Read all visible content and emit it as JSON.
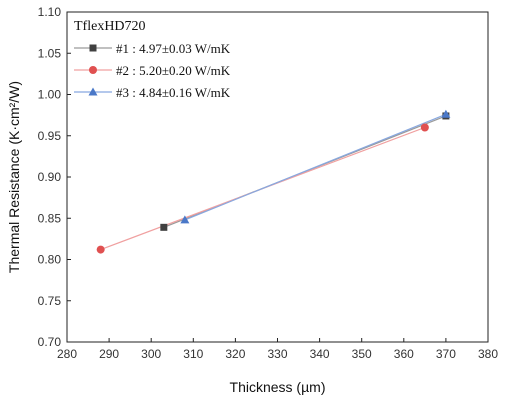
{
  "chart_data": {
    "type": "scatter",
    "title": "TflexHD720",
    "xlabel": "Thickness (µm)",
    "ylabel": "Thermal Resistance (K·cm²/W)",
    "xlim": [
      280,
      380
    ],
    "ylim": [
      0.7,
      1.1
    ],
    "xticks": [
      "280",
      "290",
      "300",
      "310",
      "320",
      "330",
      "340",
      "350",
      "360",
      "370",
      "380"
    ],
    "yticks": [
      "0.70",
      "0.75",
      "0.80",
      "0.85",
      "0.90",
      "0.95",
      "1.00",
      "1.05",
      "1.10"
    ],
    "grid": false,
    "legend_position": "top-left",
    "series": [
      {
        "name": "#1 : 4.97±0.03 W/mK",
        "marker": "square",
        "color": "#404040",
        "line_color": "#9a9a9a",
        "x": [
          303,
          370
        ],
        "y": [
          0.839,
          0.974
        ]
      },
      {
        "name": "#2 : 5.20±0.20 W/mK",
        "marker": "circle",
        "color": "#e05050",
        "line_color": "#f0a0a0",
        "x": [
          288,
          365
        ],
        "y": [
          0.812,
          0.96
        ]
      },
      {
        "name": "#3 : 4.84±0.16 W/mK",
        "marker": "triangle",
        "color": "#4a78c8",
        "line_color": "#88a8e0",
        "x": [
          308,
          370
        ],
        "y": [
          0.848,
          0.976
        ]
      }
    ]
  }
}
